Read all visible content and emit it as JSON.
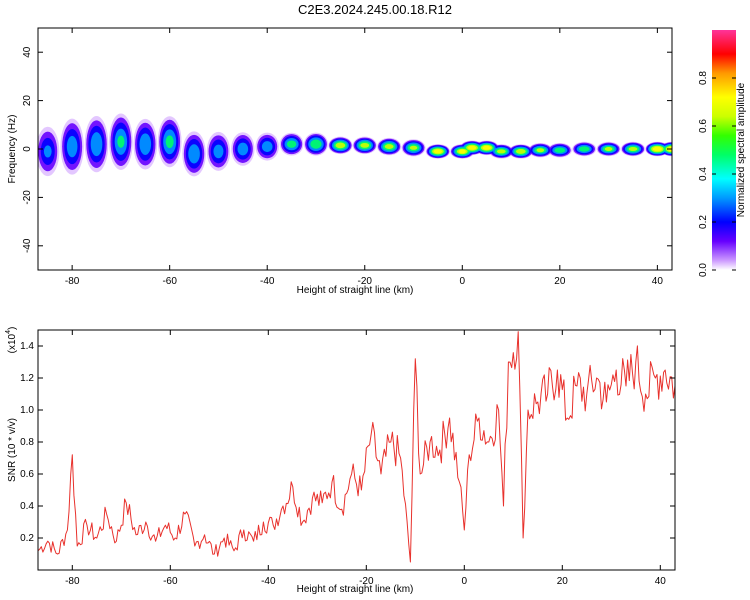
{
  "title": "C2E3.2024.245.00.18.R12",
  "chart_data": [
    {
      "type": "heatmap",
      "xlabel": "Height of straight line (km)",
      "ylabel": "Frequency (Hz)",
      "xlim": [
        -87,
        43
      ],
      "ylim": [
        -50,
        50
      ],
      "xticks": [
        -80,
        -60,
        -40,
        -20,
        0,
        20,
        40
      ],
      "yticks": [
        -40,
        -20,
        0,
        20,
        40
      ],
      "colorbar": {
        "label": "Normalized spectral amplitude",
        "range": [
          0,
          1
        ],
        "ticks": [
          0.0,
          0.2,
          0.4,
          0.6,
          0.8
        ]
      },
      "ridge": [
        {
          "x": -85,
          "f": -1,
          "spread": 9,
          "amp": 0.35
        },
        {
          "x": -80,
          "f": 1,
          "spread": 10,
          "amp": 0.42
        },
        {
          "x": -75,
          "f": 2,
          "spread": 10,
          "amp": 0.45
        },
        {
          "x": -70,
          "f": 3,
          "spread": 10,
          "amp": 0.48
        },
        {
          "x": -65,
          "f": 2,
          "spread": 9,
          "amp": 0.45
        },
        {
          "x": -60,
          "f": 3,
          "spread": 9,
          "amp": 0.5
        },
        {
          "x": -55,
          "f": -2,
          "spread": 8,
          "amp": 0.45
        },
        {
          "x": -50,
          "f": -1,
          "spread": 7,
          "amp": 0.4
        },
        {
          "x": -45,
          "f": 0,
          "spread": 6,
          "amp": 0.42
        },
        {
          "x": -40,
          "f": 1,
          "spread": 5,
          "amp": 0.42
        },
        {
          "x": -35,
          "f": 2,
          "spread": 4,
          "amp": 0.55
        },
        {
          "x": -30,
          "f": 2,
          "spread": 4,
          "amp": 0.62
        },
        {
          "x": -25,
          "f": 1.5,
          "spread": 3,
          "amp": 0.75
        },
        {
          "x": -20,
          "f": 1.5,
          "spread": 3,
          "amp": 0.7
        },
        {
          "x": -15,
          "f": 1,
          "spread": 3,
          "amp": 0.7
        },
        {
          "x": -10,
          "f": 0.5,
          "spread": 3,
          "amp": 0.65
        },
        {
          "x": -5,
          "f": -1,
          "spread": 2.5,
          "amp": 0.85
        },
        {
          "x": 0,
          "f": -1,
          "spread": 2.5,
          "amp": 0.8
        },
        {
          "x": 2,
          "f": 0.5,
          "spread": 2.5,
          "amp": 0.85
        },
        {
          "x": 5,
          "f": 0.5,
          "spread": 2.5,
          "amp": 0.85
        },
        {
          "x": 8,
          "f": -1,
          "spread": 2.5,
          "amp": 0.7
        },
        {
          "x": 12,
          "f": -1,
          "spread": 2.5,
          "amp": 0.75
        },
        {
          "x": 16,
          "f": -0.5,
          "spread": 2.5,
          "amp": 0.65
        },
        {
          "x": 20,
          "f": -0.5,
          "spread": 2.5,
          "amp": 0.6
        },
        {
          "x": 25,
          "f": 0,
          "spread": 2.5,
          "amp": 0.6
        },
        {
          "x": 30,
          "f": 0,
          "spread": 2.5,
          "amp": 0.65
        },
        {
          "x": 35,
          "f": 0,
          "spread": 2.5,
          "amp": 0.7
        },
        {
          "x": 40,
          "f": 0,
          "spread": 2.5,
          "amp": 0.9
        },
        {
          "x": 43,
          "f": 0,
          "spread": 2.5,
          "amp": 0.9
        }
      ]
    },
    {
      "type": "line",
      "xlabel": "Height of straight line (km)",
      "ylabel": "SNR (10 * v/v)",
      "y_multiplier_label": "(x10",
      "y_multiplier_exp": "4",
      "xlim": [
        -87,
        43
      ],
      "ylim": [
        0,
        1.5
      ],
      "xticks": [
        -80,
        -60,
        -40,
        -20,
        0,
        20,
        40
      ],
      "yticks": [
        0.2,
        0.4,
        0.6,
        0.8,
        1.0,
        1.2,
        1.4
      ],
      "color": "#e8312c",
      "x": [
        -87,
        -85,
        -83,
        -81,
        -80,
        -79,
        -77,
        -75,
        -73,
        -71,
        -69,
        -67,
        -65,
        -63,
        -61,
        -59,
        -57,
        -55,
        -53,
        -51,
        -49,
        -47,
        -45,
        -43,
        -41,
        -39,
        -37,
        -35,
        -33,
        -31,
        -29,
        -27,
        -25,
        -23,
        -21,
        -19,
        -17,
        -15,
        -13,
        -11,
        -10,
        -9,
        -7,
        -5,
        -3,
        -1,
        0,
        1,
        3,
        5,
        7,
        8,
        9,
        11,
        12,
        13,
        15,
        17,
        19,
        21,
        23,
        25,
        27,
        29,
        31,
        33,
        35,
        37,
        39,
        41,
        43
      ],
      "y": [
        0.12,
        0.18,
        0.1,
        0.25,
        0.72,
        0.15,
        0.28,
        0.2,
        0.35,
        0.18,
        0.42,
        0.22,
        0.3,
        0.18,
        0.28,
        0.2,
        0.35,
        0.15,
        0.22,
        0.1,
        0.2,
        0.12,
        0.25,
        0.18,
        0.3,
        0.28,
        0.4,
        0.52,
        0.3,
        0.45,
        0.42,
        0.55,
        0.38,
        0.6,
        0.5,
        0.85,
        0.6,
        0.8,
        0.7,
        0.05,
        1.32,
        0.6,
        0.8,
        0.75,
        0.95,
        0.55,
        0.25,
        0.72,
        0.95,
        0.8,
        1.0,
        0.4,
        1.3,
        1.5,
        0.2,
        1.0,
        1.05,
        1.1,
        1.25,
        0.95,
        1.15,
        1.1,
        1.2,
        1.05,
        1.25,
        1.15,
        1.3,
        1.1,
        1.2,
        1.25,
        1.15
      ]
    }
  ]
}
